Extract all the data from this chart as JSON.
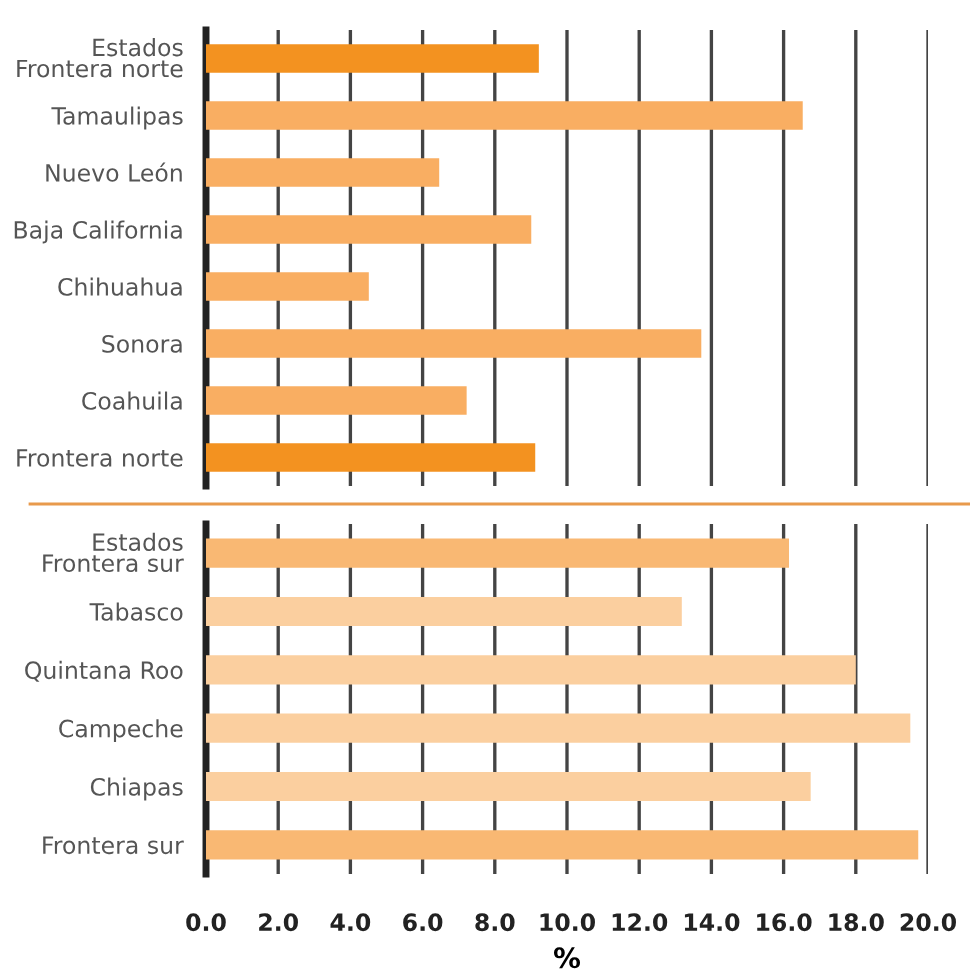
{
  "chart_data": [
    {
      "type": "bar",
      "orientation": "horizontal",
      "categories": [
        "Estados\nFrontera norte",
        "Tamaulipas",
        "Nuevo León",
        "Baja California",
        "Chihuahua",
        "Sonora",
        "Coahuila",
        "Frontera norte"
      ],
      "values": [
        9.22,
        16.53,
        6.46,
        9.01,
        4.51,
        13.72,
        7.22,
        9.12
      ],
      "colors": [
        "#f39220",
        "#f9ae62",
        "#f9ae62",
        "#f9ae62",
        "#f9ae62",
        "#f9ae62",
        "#f9ae62",
        "#f39220"
      ],
      "xlim": [
        0,
        20
      ],
      "xticks": [
        {
          "value": 0,
          "label": null
        },
        {
          "value": 2,
          "label": null
        },
        {
          "value": 4,
          "label": null
        },
        {
          "value": 6,
          "label": null
        },
        {
          "value": 8,
          "label": null
        },
        {
          "value": 10,
          "label": null
        },
        {
          "value": 12,
          "label": null
        },
        {
          "value": 14,
          "label": null
        },
        {
          "value": 16,
          "label": null
        },
        {
          "value": 18,
          "label": null
        },
        {
          "value": 20,
          "label": null
        }
      ],
      "grid": "x",
      "tick_labels": "y"
    },
    {
      "type": "bar",
      "orientation": "horizontal",
      "categories": [
        "Estados\nFrontera sur",
        "Tabasco",
        "Quintana Roo",
        "Campeche",
        "Chiapas",
        "Frontera sur"
      ],
      "values": [
        16.15,
        13.18,
        18.0,
        19.51,
        16.75,
        19.73
      ],
      "colors": [
        "#f9b873",
        "#fbcf9f",
        "#fbcf9f",
        "#fbcf9f",
        "#fbcf9f",
        "#f9b873"
      ],
      "xlim": [
        0,
        20
      ],
      "xticks": [
        {
          "value": 0,
          "label": "0.0"
        },
        {
          "value": 2,
          "label": "2.0"
        },
        {
          "value": 4,
          "label": "4.0"
        },
        {
          "value": 6,
          "label": "6.0"
        },
        {
          "value": 8,
          "label": "8.0"
        },
        {
          "value": 10,
          "label": "10.0"
        },
        {
          "value": 12,
          "label": "12.0"
        },
        {
          "value": 14,
          "label": "14.0"
        },
        {
          "value": 16,
          "label": "16.0"
        },
        {
          "value": 18,
          "label": "18.0"
        },
        {
          "value": 20,
          "label": "20.0"
        }
      ],
      "xlabel": "%",
      "grid": "x"
    }
  ]
}
